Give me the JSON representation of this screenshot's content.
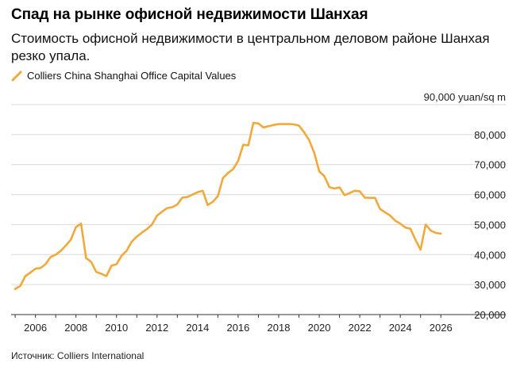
{
  "header": {
    "title": "Спад на рынке офисной недвижимости Шанхая",
    "subtitle": "Стоимость офисной недвижимости в центральном деловом районе Шанхая резко упала."
  },
  "legend": {
    "label": "Colliers China Shanghai Office Capital Values"
  },
  "footer": {
    "source": "Источник: Colliers International"
  },
  "colors": {
    "series": "#f2a93b",
    "grid": "#d9d9d9",
    "axis": "#333333"
  },
  "chart_data": {
    "type": "line",
    "title": "Спад на рынке офисной недвижимости Шанхая",
    "ylabel": "90,000 yuan/sq m",
    "xlim": [
      2004.8,
      2026.5
    ],
    "ylim": [
      20000,
      90000
    ],
    "x_ticks": [
      2006,
      2008,
      2010,
      2012,
      2014,
      2016,
      2018,
      2020,
      2022,
      2024,
      2026
    ],
    "x_tick_labels": [
      "2006",
      "2008",
      "2010",
      "2012",
      "2014",
      "2016",
      "2018",
      "2020",
      "2022",
      "2024",
      "2026"
    ],
    "y_ticks": [
      20000,
      30000,
      40000,
      50000,
      60000,
      70000,
      80000,
      90000
    ],
    "y_tick_labels": [
      "20,000",
      "30,000",
      "40,000",
      "50,000",
      "60,000",
      "70,000",
      "80,000",
      ""
    ],
    "grid": true,
    "legend_position": "top-left",
    "series": [
      {
        "name": "Colliers China Shanghai Office Capital Values",
        "x": [
          2005.0,
          2005.25,
          2005.5,
          2005.75,
          2006.0,
          2006.25,
          2006.5,
          2006.75,
          2007.0,
          2007.25,
          2007.5,
          2007.75,
          2008.0,
          2008.25,
          2008.5,
          2008.75,
          2009.0,
          2009.25,
          2009.5,
          2009.75,
          2010.0,
          2010.25,
          2010.5,
          2010.75,
          2011.0,
          2011.25,
          2011.5,
          2011.75,
          2012.0,
          2012.25,
          2012.5,
          2012.75,
          2013.0,
          2013.25,
          2013.5,
          2013.75,
          2014.0,
          2014.25,
          2014.5,
          2014.75,
          2015.0,
          2015.25,
          2015.5,
          2015.75,
          2016.0,
          2016.25,
          2016.5,
          2016.75,
          2017.0,
          2017.25,
          2017.5,
          2017.75,
          2018.0,
          2018.25,
          2018.5,
          2018.75,
          2019.0,
          2019.25,
          2019.5,
          2019.75,
          2020.0,
          2020.25,
          2020.5,
          2020.75,
          2021.0,
          2021.25,
          2021.5,
          2021.75,
          2022.0,
          2022.25,
          2022.5,
          2022.75,
          2023.0,
          2023.25,
          2023.5,
          2023.75,
          2024.0,
          2024.25,
          2024.5,
          2024.75,
          2025.0,
          2025.25,
          2025.5,
          2025.75,
          2026.0
        ],
        "y": [
          28500,
          29500,
          32800,
          34000,
          35300,
          35500,
          36800,
          39200,
          40000,
          41200,
          43000,
          45000,
          49200,
          50300,
          38800,
          37600,
          34200,
          33600,
          32800,
          36300,
          36800,
          39600,
          41300,
          44300,
          46000,
          47300,
          48500,
          50000,
          53000,
          54300,
          55500,
          55800,
          56700,
          59000,
          59200,
          60000,
          60800,
          61300,
          56500,
          57600,
          59500,
          65500,
          67200,
          68500,
          71200,
          76600,
          76400,
          83900,
          83700,
          82400,
          82800,
          83200,
          83500,
          83500,
          83500,
          83400,
          83000,
          80800,
          78200,
          74000,
          67700,
          66200,
          62500,
          62000,
          62400,
          59800,
          60500,
          61300,
          61100,
          59000,
          58900,
          58900,
          55200,
          54100,
          53000,
          51300,
          50300,
          49000,
          48600,
          44900,
          41600,
          50000,
          48000,
          47200,
          47000
        ]
      }
    ]
  }
}
